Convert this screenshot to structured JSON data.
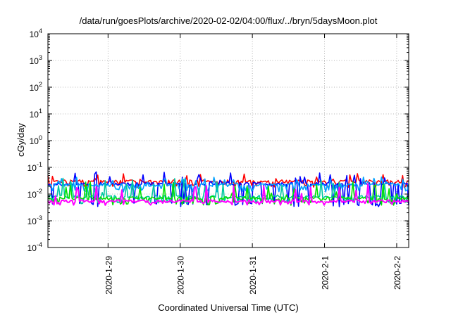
{
  "chart_data": {
    "type": "line",
    "title": "/data/run/goesPlots/archive/2020-02-02/04:00/flux/../bryn/5daysMoon.plot",
    "xlabel": "Coordinated Universal Time (UTC)",
    "ylabel": "cGy/day",
    "yscale": "log",
    "ylim": [
      0.0001,
      10000
    ],
    "y_ticks": [
      {
        "base": "10",
        "exp": "-4"
      },
      {
        "base": "10",
        "exp": "-3"
      },
      {
        "base": "10",
        "exp": "-2"
      },
      {
        "base": "10",
        "exp": "-1"
      },
      {
        "base": "10",
        "exp": "0"
      },
      {
        "base": "10",
        "exp": "1"
      },
      {
        "base": "10",
        "exp": "2"
      },
      {
        "base": "10",
        "exp": "3"
      },
      {
        "base": "10",
        "exp": "4"
      }
    ],
    "xlim": [
      "2020-01-28 04:00",
      "2020-02-02 04:00"
    ],
    "x_ticks": [
      "2020-1-29",
      "2020-1-30",
      "2020-1-31",
      "2020-2-1",
      "2020-2-2"
    ],
    "grid": true,
    "series": [
      {
        "color": "#ff0000",
        "baseline": 0.03,
        "low": 0.02,
        "spike_max": 0.06
      },
      {
        "color": "#0000ff",
        "baseline": 0.024,
        "low": 0.004,
        "spike_max": 0.07
      },
      {
        "color": "#00a0ff",
        "baseline": 0.022,
        "low": 0.014,
        "spike_max": 0.045
      },
      {
        "color": "#00c8a0",
        "baseline": 0.008,
        "low": 0.005,
        "spike_max": 0.04
      },
      {
        "color": "#00e000",
        "baseline": 0.007,
        "low": 0.0045,
        "spike_max": 0.03
      },
      {
        "color": "#ff00ff",
        "baseline": 0.0055,
        "low": 0.0045,
        "spike_max": 0.025
      }
    ]
  }
}
